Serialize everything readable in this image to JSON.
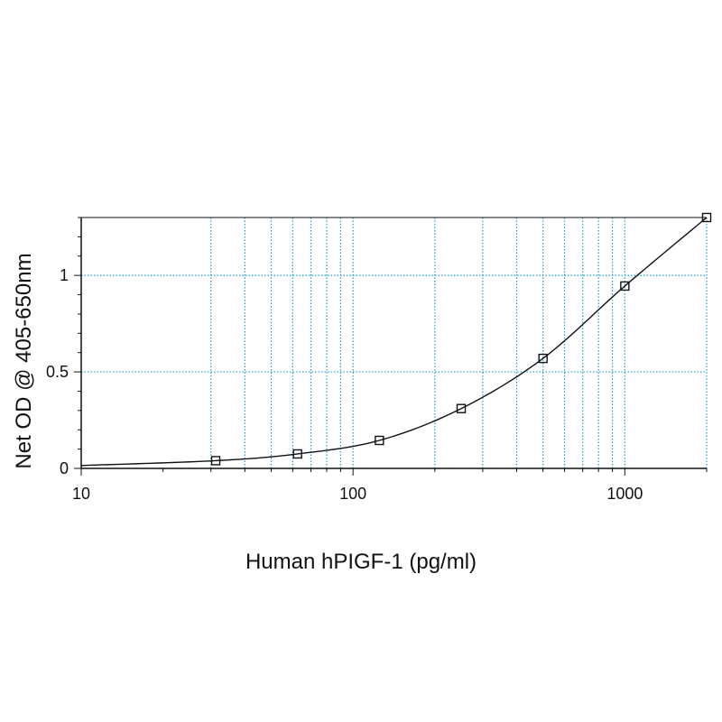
{
  "chart_data": {
    "type": "line",
    "title": "",
    "xlabel": "Human hPIGF-1 (pg/ml)",
    "ylabel": "Net OD @ 405-650nm",
    "x_scale": "log",
    "xlim": [
      10,
      2000
    ],
    "ylim": [
      0,
      1.3
    ],
    "grid": true,
    "grid_color": "#1aa0d0",
    "line_color": "#111111",
    "marker": "square",
    "x_ticks": [
      {
        "value": 10,
        "label": "10"
      },
      {
        "value": 100,
        "label": "100"
      },
      {
        "value": 1000,
        "label": "1000"
      }
    ],
    "y_ticks": [
      {
        "value": 0,
        "label": "0"
      },
      {
        "value": 0.5,
        "label": "0.5"
      },
      {
        "value": 1,
        "label": "1"
      }
    ],
    "x_gridlines": [
      30,
      40,
      50,
      60,
      70,
      80,
      90,
      100,
      200,
      300,
      400,
      500,
      600,
      700,
      800,
      900,
      1000,
      2000
    ],
    "y_gridlines": [
      0.5,
      1.0
    ],
    "series": [
      {
        "x": [
          31.25,
          62.5,
          125,
          250,
          500,
          1000,
          2000
        ],
        "y": [
          0.04,
          0.075,
          0.145,
          0.31,
          0.57,
          0.945,
          1.3
        ]
      }
    ]
  }
}
